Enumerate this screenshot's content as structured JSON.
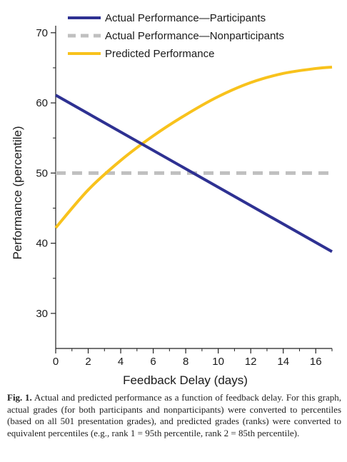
{
  "chart_data": {
    "type": "line",
    "xlabel": "Feedback Delay (days)",
    "ylabel": "Performance (percentile)",
    "xlim": [
      0,
      17
    ],
    "ylim": [
      25,
      71
    ],
    "x_ticks": [
      0,
      2,
      4,
      6,
      8,
      10,
      12,
      14,
      16
    ],
    "y_ticks": [
      30,
      40,
      50,
      60,
      70
    ],
    "grid": false,
    "legend_position": "top-right",
    "series": [
      {
        "name": "Actual Performance—Participants",
        "color": "#2e3192",
        "style": "solid",
        "x": [
          0,
          17
        ],
        "y": [
          61.1,
          38.8
        ]
      },
      {
        "name": "Actual Performance—Nonparticipants",
        "color": "#c0c0c0",
        "style": "dashed",
        "x": [
          0,
          17
        ],
        "y": [
          50,
          50
        ]
      },
      {
        "name": "Predicted Performance",
        "color": "#f8c21c",
        "style": "solid",
        "x": [
          0,
          2,
          4,
          6,
          8,
          10,
          12,
          14,
          16,
          17
        ],
        "y": [
          42.2,
          47.6,
          51.8,
          55.3,
          58.3,
          60.9,
          62.9,
          64.2,
          64.9,
          65.1
        ]
      }
    ]
  },
  "caption": {
    "label": "Fig. 1.",
    "text": "Actual and predicted performance as a function of feedback delay. For this graph, actual grades (for both participants and nonparticipants) were converted to percentiles (based on all 501 presentation grades), and predicted grades (ranks) were converted to equivalent percentiles (e.g., rank 1 = 95th percentile, rank 2 = 85th percentile)."
  }
}
